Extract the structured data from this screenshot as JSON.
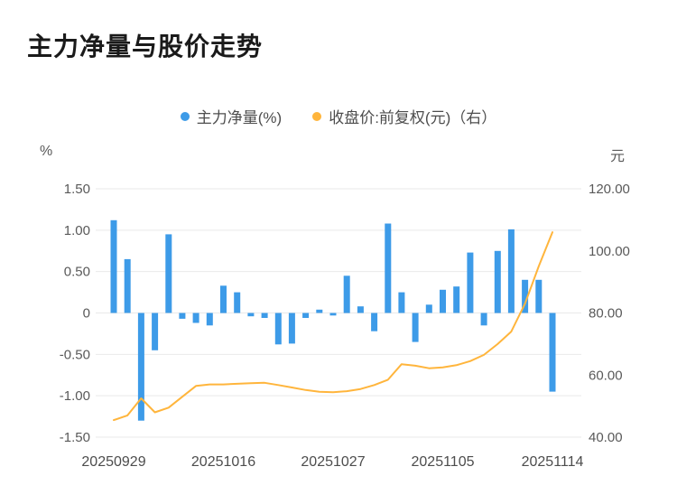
{
  "title": "主力净量与股价走势",
  "chart_data": {
    "type": "combo (bar + line, dual axis)",
    "title": "主力净量与股价走势",
    "legend_position": "top",
    "grid": true,
    "x_tick_labels": [
      "20250929",
      "20251016",
      "20251027",
      "20251105",
      "20251114"
    ],
    "x_tick_indices": [
      0,
      8,
      16,
      24,
      32
    ],
    "left_axis": {
      "unit": "%",
      "min": -1.5,
      "max": 1.5,
      "tick_values": [
        1.5,
        1.0,
        0.5,
        0,
        -0.5,
        -1.0,
        -1.5
      ],
      "ticks": [
        "1.50",
        "1.00",
        "0.50",
        "0",
        "-0.50",
        "-1.00",
        "-1.50"
      ]
    },
    "right_axis": {
      "unit": "元",
      "min": 40,
      "max": 120,
      "tick_values": [
        120,
        100,
        80,
        60,
        40
      ],
      "ticks": [
        "120.00",
        "100.00",
        "80.00",
        "60.00",
        "40.00"
      ]
    },
    "series": [
      {
        "name": "主力净量(%)",
        "type": "bar",
        "axis": "left",
        "color": "#3d9be8",
        "values": [
          1.12,
          0.65,
          -1.3,
          -0.45,
          0.95,
          -0.07,
          -0.12,
          -0.15,
          0.33,
          0.25,
          -0.04,
          -0.06,
          -0.38,
          -0.37,
          -0.06,
          0.04,
          -0.03,
          0.45,
          0.08,
          -0.22,
          1.08,
          0.25,
          -0.35,
          0.1,
          0.28,
          0.32,
          0.73,
          -0.15,
          0.75,
          1.01,
          0.4,
          0.4,
          -0.95
        ]
      },
      {
        "name": "收盘价:前复权(元)（右）",
        "type": "line",
        "axis": "right",
        "color": "#ffb53c",
        "values": [
          45.5,
          47.0,
          52.5,
          48.0,
          49.5,
          53.0,
          56.5,
          57.0,
          57.0,
          57.2,
          57.4,
          57.5,
          56.8,
          56.0,
          55.2,
          54.6,
          54.5,
          54.8,
          55.5,
          56.8,
          58.5,
          63.5,
          63.0,
          62.2,
          62.5,
          63.2,
          64.5,
          66.5,
          70.0,
          74.0,
          83.0,
          95.0,
          106.0
        ]
      }
    ]
  }
}
